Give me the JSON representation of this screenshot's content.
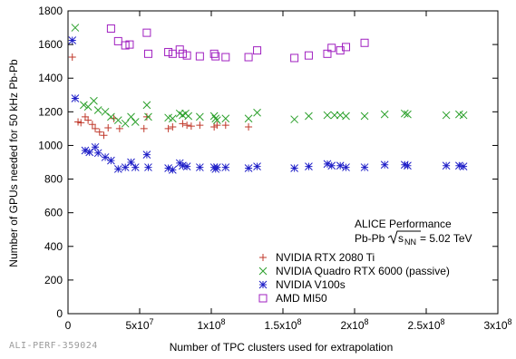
{
  "chart_data": {
    "type": "scatter",
    "title": "",
    "xlabel": "Number of TPC clusters used for extrapolation",
    "ylabel": "Number of GPUs needed for 50 kHz Pb-Pb",
    "xlim": [
      0,
      300000000
    ],
    "ylim": [
      0,
      1800
    ],
    "x_ticks": [
      {
        "value": 0,
        "label": "0"
      },
      {
        "value": 50000000,
        "label": "5x10",
        "exp": "7"
      },
      {
        "value": 100000000,
        "label": "1x10",
        "exp": "8"
      },
      {
        "value": 150000000,
        "label": "1.5x10",
        "exp": "8"
      },
      {
        "value": 200000000,
        "label": "2x10",
        "exp": "8"
      },
      {
        "value": 250000000,
        "label": "2.5x10",
        "exp": "8"
      },
      {
        "value": 300000000,
        "label": "3x10",
        "exp": "8"
      }
    ],
    "y_ticks": [
      0,
      200,
      400,
      600,
      800,
      1000,
      1200,
      1400,
      1600,
      1800
    ],
    "grid": false,
    "legend_position": "lower-center",
    "annotation": {
      "line1": "ALICE Performance",
      "line2_prefix": "Pb-Pb ",
      "line2_s": "s",
      "line2_nn": "NN",
      "line2_suffix": " = 5.02 TeV"
    },
    "series": [
      {
        "name": "NVIDIA RTX 2080 Ti",
        "marker": "plus",
        "color": "#c0392b",
        "points": [
          [
            3000000,
            1525
          ],
          [
            7000000,
            1140
          ],
          [
            9000000,
            1135
          ],
          [
            12000000,
            1170
          ],
          [
            14000000,
            1150
          ],
          [
            17000000,
            1125
          ],
          [
            19000000,
            1100
          ],
          [
            22000000,
            1080
          ],
          [
            25000000,
            1060
          ],
          [
            28000000,
            1105
          ],
          [
            32000000,
            1160
          ],
          [
            36000000,
            1100
          ],
          [
            53000000,
            1100
          ],
          [
            55000000,
            1170
          ],
          [
            70000000,
            1100
          ],
          [
            73000000,
            1110
          ],
          [
            80000000,
            1130
          ],
          [
            83000000,
            1120
          ],
          [
            86000000,
            1115
          ],
          [
            92000000,
            1120
          ],
          [
            102000000,
            1110
          ],
          [
            104000000,
            1120
          ],
          [
            110000000,
            1120
          ],
          [
            126000000,
            1110
          ]
        ]
      },
      {
        "name": "NVIDIA Quadro RTX 6000 (passive)",
        "marker": "cross",
        "color": "#2ca02c",
        "points": [
          [
            5000000,
            1700
          ],
          [
            11000000,
            1240
          ],
          [
            14000000,
            1230
          ],
          [
            18000000,
            1265
          ],
          [
            21000000,
            1210
          ],
          [
            26000000,
            1200
          ],
          [
            30000000,
            1170
          ],
          [
            35000000,
            1150
          ],
          [
            40000000,
            1130
          ],
          [
            44000000,
            1170
          ],
          [
            47000000,
            1140
          ],
          [
            55000000,
            1240
          ],
          [
            56000000,
            1170
          ],
          [
            70000000,
            1165
          ],
          [
            73000000,
            1160
          ],
          [
            78000000,
            1190
          ],
          [
            80000000,
            1180
          ],
          [
            82000000,
            1190
          ],
          [
            84000000,
            1175
          ],
          [
            92000000,
            1170
          ],
          [
            102000000,
            1175
          ],
          [
            103000000,
            1160
          ],
          [
            104000000,
            1150
          ],
          [
            110000000,
            1160
          ],
          [
            126000000,
            1160
          ],
          [
            132000000,
            1195
          ],
          [
            158000000,
            1155
          ],
          [
            168000000,
            1175
          ],
          [
            181000000,
            1180
          ],
          [
            186000000,
            1180
          ],
          [
            190000000,
            1180
          ],
          [
            194000000,
            1175
          ],
          [
            207000000,
            1175
          ],
          [
            221000000,
            1185
          ],
          [
            235000000,
            1190
          ],
          [
            237000000,
            1185
          ],
          [
            264000000,
            1180
          ],
          [
            273000000,
            1185
          ],
          [
            276000000,
            1180
          ]
        ]
      },
      {
        "name": "NVIDIA V100s",
        "marker": "star",
        "color": "#2020c8",
        "points": [
          [
            3000000,
            1625
          ],
          [
            5000000,
            1280
          ],
          [
            12000000,
            970
          ],
          [
            15000000,
            960
          ],
          [
            19000000,
            990
          ],
          [
            21000000,
            955
          ],
          [
            26000000,
            930
          ],
          [
            30000000,
            910
          ],
          [
            35000000,
            860
          ],
          [
            40000000,
            870
          ],
          [
            44000000,
            900
          ],
          [
            47000000,
            870
          ],
          [
            55000000,
            945
          ],
          [
            56000000,
            870
          ],
          [
            70000000,
            865
          ],
          [
            73000000,
            855
          ],
          [
            78000000,
            895
          ],
          [
            80000000,
            880
          ],
          [
            83000000,
            875
          ],
          [
            92000000,
            870
          ],
          [
            102000000,
            870
          ],
          [
            103000000,
            860
          ],
          [
            104000000,
            870
          ],
          [
            110000000,
            870
          ],
          [
            126000000,
            865
          ],
          [
            132000000,
            875
          ],
          [
            158000000,
            865
          ],
          [
            168000000,
            875
          ],
          [
            181000000,
            890
          ],
          [
            184000000,
            880
          ],
          [
            190000000,
            880
          ],
          [
            194000000,
            870
          ],
          [
            207000000,
            870
          ],
          [
            221000000,
            885
          ],
          [
            235000000,
            885
          ],
          [
            237000000,
            880
          ],
          [
            264000000,
            880
          ],
          [
            273000000,
            880
          ],
          [
            276000000,
            875
          ]
        ]
      },
      {
        "name": "AMD MI50",
        "marker": "square",
        "color": "#a020c0",
        "points": [
          [
            30000000,
            1695
          ],
          [
            35000000,
            1620
          ],
          [
            40000000,
            1595
          ],
          [
            43000000,
            1600
          ],
          [
            55000000,
            1670
          ],
          [
            56000000,
            1545
          ],
          [
            70000000,
            1555
          ],
          [
            73000000,
            1545
          ],
          [
            78000000,
            1570
          ],
          [
            80000000,
            1545
          ],
          [
            83000000,
            1535
          ],
          [
            92000000,
            1530
          ],
          [
            102000000,
            1545
          ],
          [
            103000000,
            1530
          ],
          [
            110000000,
            1525
          ],
          [
            126000000,
            1525
          ],
          [
            132000000,
            1565
          ],
          [
            158000000,
            1520
          ],
          [
            168000000,
            1535
          ],
          [
            181000000,
            1545
          ],
          [
            184000000,
            1580
          ],
          [
            190000000,
            1565
          ],
          [
            194000000,
            1585
          ],
          [
            207000000,
            1610
          ]
        ]
      }
    ]
  },
  "footer_tag": "ALI-PERF-359024"
}
